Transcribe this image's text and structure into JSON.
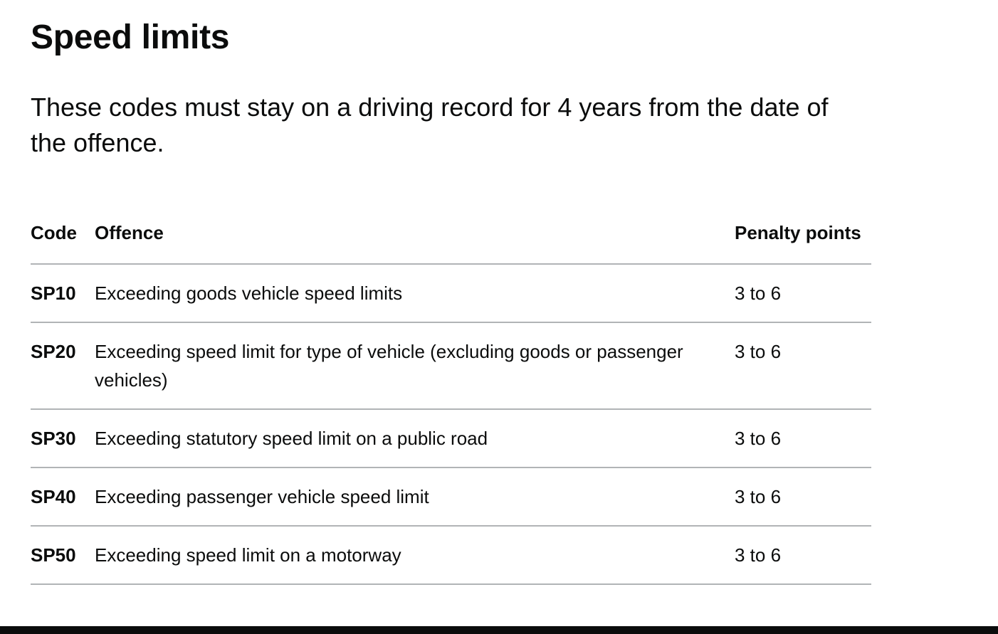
{
  "heading": "Speed limits",
  "lead": "These codes must stay on a driving record for 4 years from the date of the offence.",
  "table": {
    "headers": {
      "code": "Code",
      "offence": "Offence",
      "points": "Penalty points"
    },
    "rows": [
      {
        "code": "SP10",
        "offence": "Exceeding goods vehicle speed limits",
        "points": "3 to 6"
      },
      {
        "code": "SP20",
        "offence": "Exceeding speed limit for type of vehicle (excluding goods or passenger vehicles)",
        "points": "3 to 6"
      },
      {
        "code": "SP30",
        "offence": "Exceeding statutory speed limit on a public road",
        "points": "3 to 6"
      },
      {
        "code": "SP40",
        "offence": "Exceeding passenger vehicle speed limit",
        "points": "3 to 6"
      },
      {
        "code": "SP50",
        "offence": "Exceeding speed limit on a motorway",
        "points": "3 to 6"
      }
    ]
  },
  "colors": {
    "text": "#0b0c0c",
    "border": "#b1b4b6",
    "footer_bar": "#0b0c0c"
  }
}
